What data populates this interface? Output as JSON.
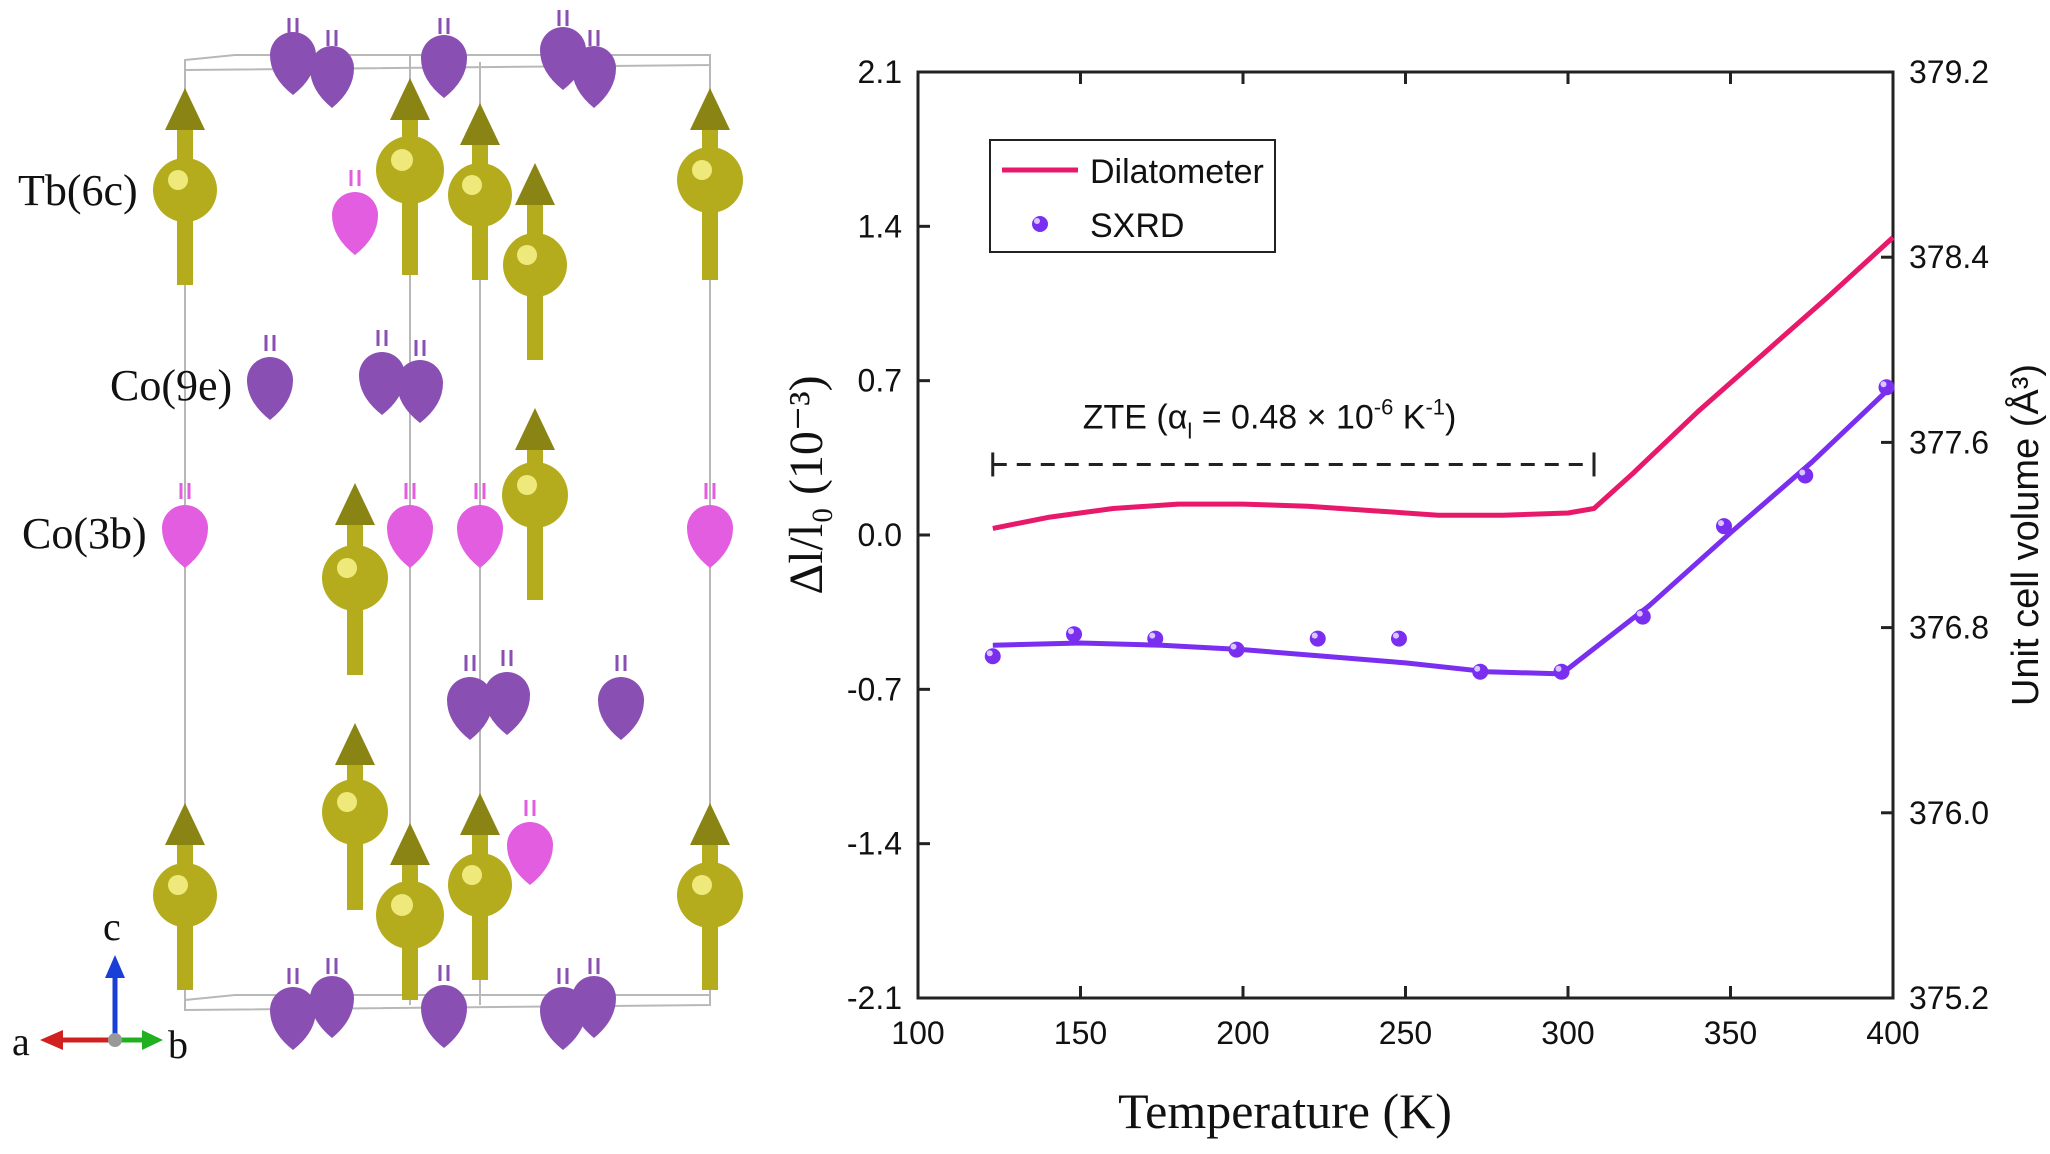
{
  "crystal_panel": {
    "site_labels": {
      "tb6c": "Tb(6c)",
      "co9e": "Co(9e)",
      "co3b": "Co(3b)"
    },
    "axes_labels": {
      "c": "c",
      "a": "a",
      "b": "b"
    },
    "colors": {
      "tb": "#b4ac1c",
      "co9e": "#8a4fb3",
      "co3b": "#e25de0",
      "axis_c": "#1a3fd6",
      "axis_a": "#d02020",
      "axis_b": "#20b020"
    }
  },
  "chart_data": {
    "type": "line",
    "xlabel": "Temperature (K)",
    "ylabel_left": "Δl/l₀ (10⁻³)",
    "ylabel_right": "Unit cell volume (Å³)",
    "xlim": [
      100,
      400
    ],
    "ylim_left": [
      -2.1,
      2.1
    ],
    "ylim_right": [
      375.2,
      379.2
    ],
    "x_ticks": [
      "100",
      "150",
      "200",
      "250",
      "300",
      "350",
      "400"
    ],
    "y_ticks_left": [
      "2.1",
      "1.4",
      "0.7",
      "0.0",
      "-0.7",
      "-1.4",
      "-2.1"
    ],
    "y_ticks_right": [
      "379.2",
      "378.4",
      "377.6",
      "376.8",
      "376.0",
      "375.2"
    ],
    "series": [
      {
        "name": "Dilatometer",
        "kind": "line",
        "axis": "left",
        "color": "#e8186b",
        "x": [
          123,
          140,
          160,
          180,
          200,
          220,
          240,
          260,
          280,
          300,
          308,
          320,
          340,
          360,
          380,
          400
        ],
        "y": [
          0.03,
          0.08,
          0.12,
          0.14,
          0.14,
          0.13,
          0.11,
          0.09,
          0.09,
          0.1,
          0.12,
          0.28,
          0.56,
          0.82,
          1.08,
          1.35
        ]
      },
      {
        "name": "SXRD fit",
        "kind": "line",
        "axis": "left",
        "color": "#7a2ef0",
        "x": [
          123,
          150,
          175,
          200,
          225,
          250,
          275,
          298,
          325,
          350,
          375,
          400
        ],
        "y": [
          -0.5,
          -0.49,
          -0.5,
          -0.52,
          -0.55,
          -0.58,
          -0.62,
          -0.63,
          -0.32,
          0.01,
          0.33,
          0.68
        ]
      },
      {
        "name": "SXRD",
        "kind": "scatter",
        "axis": "left",
        "color": "#7a2ef0",
        "x": [
          123,
          148,
          173,
          198,
          223,
          248,
          273,
          298,
          323,
          348,
          373,
          398
        ],
        "y": [
          -0.55,
          -0.45,
          -0.47,
          -0.52,
          -0.47,
          -0.47,
          -0.62,
          -0.62,
          -0.37,
          0.04,
          0.27,
          0.67
        ]
      }
    ],
    "legend": {
      "position": "top-left",
      "entries": [
        "Dilatometer",
        "SXRD"
      ]
    },
    "annotation": {
      "text": "ZTE (α",
      "sub": "l",
      "text2": " = 0.48 × 10",
      "sup": "-6",
      "text3": " K",
      "sup2": "-1",
      "text4": ")",
      "x_start": 123,
      "x_end": 308,
      "y": 0.32
    }
  }
}
